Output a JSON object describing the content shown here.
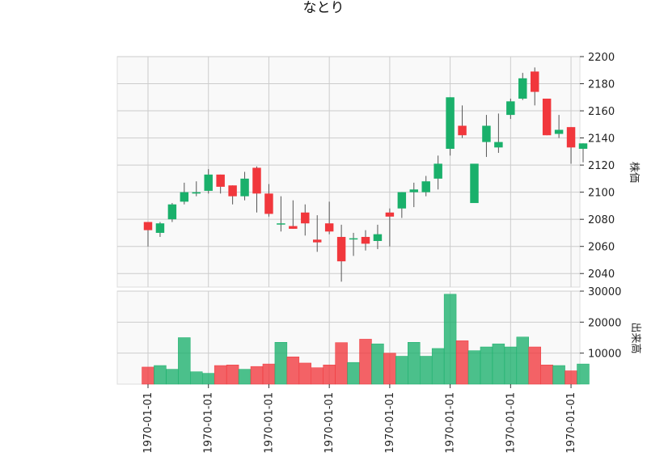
{
  "chart_data": {
    "type": "candlestick",
    "title": "なとり",
    "ylabel_price": "株価",
    "ylabel_volume": "出来高",
    "price_ylim": [
      2030,
      2200
    ],
    "price_yticks": [
      2040,
      2060,
      2080,
      2100,
      2120,
      2140,
      2160,
      2180,
      2200
    ],
    "volume_ylim": [
      0,
      30000
    ],
    "volume_yticks": [
      10000,
      20000,
      30000
    ],
    "x_tick_labels": [
      "1970-01-01",
      "1970-01-01",
      "1970-01-01",
      "1970-01-01",
      "1970-01-01",
      "1970-01-01",
      "1970-01-01",
      "1970-01-01"
    ],
    "x_tick_indices": [
      0,
      5,
      10,
      15,
      20,
      25,
      30,
      35
    ],
    "grid": true,
    "colors": {
      "up": "#1ab06b",
      "down": "#f1373c",
      "wick": "#555555",
      "grid": "#cccccc",
      "panel_bg": "#f9f9f9"
    },
    "candles": [
      {
        "open": 2078,
        "high": 2078,
        "low": 2060,
        "close": 2072,
        "volume": 5500
      },
      {
        "open": 2070,
        "high": 2078,
        "low": 2067,
        "close": 2077,
        "volume": 6000
      },
      {
        "open": 2080,
        "high": 2092,
        "low": 2078,
        "close": 2091,
        "volume": 4800
      },
      {
        "open": 2093,
        "high": 2107,
        "low": 2091,
        "close": 2100,
        "volume": 15000
      },
      {
        "open": 2099,
        "high": 2108,
        "low": 2097,
        "close": 2100,
        "volume": 4000
      },
      {
        "open": 2101,
        "high": 2117,
        "low": 2099,
        "close": 2113,
        "volume": 3500
      },
      {
        "open": 2113,
        "high": 2113,
        "low": 2099,
        "close": 2104,
        "volume": 6000
      },
      {
        "open": 2105,
        "high": 2105,
        "low": 2091,
        "close": 2097,
        "volume": 6200
      },
      {
        "open": 2097,
        "high": 2115,
        "low": 2094,
        "close": 2110,
        "volume": 4800
      },
      {
        "open": 2118,
        "high": 2119,
        "low": 2085,
        "close": 2099,
        "volume": 5700
      },
      {
        "open": 2099,
        "high": 2106,
        "low": 2082,
        "close": 2084,
        "volume": 6500
      },
      {
        "open": 2077,
        "high": 2097,
        "low": 2071,
        "close": 2077,
        "volume": 13500
      },
      {
        "open": 2075,
        "high": 2094,
        "low": 2073,
        "close": 2073,
        "volume": 8800
      },
      {
        "open": 2085,
        "high": 2091,
        "low": 2068,
        "close": 2077,
        "volume": 6800
      },
      {
        "open": 2065,
        "high": 2083,
        "low": 2056,
        "close": 2063,
        "volume": 5300
      },
      {
        "open": 2077,
        "high": 2093,
        "low": 2069,
        "close": 2071,
        "volume": 6200
      },
      {
        "open": 2067,
        "high": 2076,
        "low": 2034,
        "close": 2049,
        "volume": 13400
      },
      {
        "open": 2066,
        "high": 2070,
        "low": 2053,
        "close": 2066,
        "volume": 7000
      },
      {
        "open": 2067,
        "high": 2072,
        "low": 2057,
        "close": 2062,
        "volume": 14500
      },
      {
        "open": 2064,
        "high": 2076,
        "low": 2058,
        "close": 2069,
        "volume": 13000
      },
      {
        "open": 2085,
        "high": 2088,
        "low": 2060,
        "close": 2082,
        "volume": 10000
      },
      {
        "open": 2088,
        "high": 2100,
        "low": 2081,
        "close": 2100,
        "volume": 9000
      },
      {
        "open": 2100,
        "high": 2107,
        "low": 2089,
        "close": 2102,
        "volume": 13500
      },
      {
        "open": 2100,
        "high": 2112,
        "low": 2097,
        "close": 2108,
        "volume": 9000
      },
      {
        "open": 2110,
        "high": 2127,
        "low": 2102,
        "close": 2121,
        "volume": 11500
      },
      {
        "open": 2132,
        "high": 2170,
        "low": 2127,
        "close": 2170,
        "volume": 29000
      },
      {
        "open": 2149,
        "high": 2164,
        "low": 2140,
        "close": 2142,
        "volume": 14000
      },
      {
        "open": 2092,
        "high": 2121,
        "low": 2092,
        "close": 2121,
        "volume": 10800
      },
      {
        "open": 2137,
        "high": 2157,
        "low": 2126,
        "close": 2149,
        "volume": 12000
      },
      {
        "open": 2133,
        "high": 2158,
        "low": 2129,
        "close": 2137,
        "volume": 13000
      },
      {
        "open": 2157,
        "high": 2169,
        "low": 2154,
        "close": 2167,
        "volume": 12000
      },
      {
        "open": 2169,
        "high": 2188,
        "low": 2168,
        "close": 2184,
        "volume": 15200
      },
      {
        "open": 2189,
        "high": 2192,
        "low": 2164,
        "close": 2174,
        "volume": 12000
      },
      {
        "open": 2169,
        "high": 2169,
        "low": 2142,
        "close": 2142,
        "volume": 6200
      },
      {
        "open": 2143,
        "high": 2157,
        "low": 2140,
        "close": 2146,
        "volume": 6000
      },
      {
        "open": 2148,
        "high": 2148,
        "low": 2121,
        "close": 2133,
        "volume": 4300
      },
      {
        "open": 2132,
        "high": 2136,
        "low": 2122,
        "close": 2136,
        "volume": 6500
      }
    ]
  }
}
